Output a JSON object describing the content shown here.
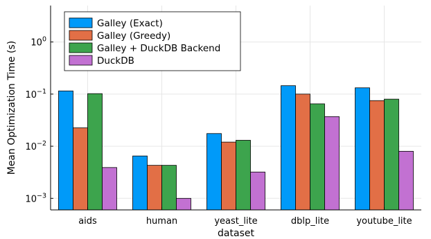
{
  "chart_data": {
    "type": "bar",
    "xlabel": "dataset",
    "ylabel": "Mean Optimization Time (s)",
    "yscale": "log",
    "ylim": [
      0.0006,
      5
    ],
    "grid": true,
    "legend_position": "top-left",
    "categories": [
      "aids",
      "human",
      "yeast_lite",
      "dblp_lite",
      "youtube_lite"
    ],
    "y_ticks": [
      {
        "value": 0.001,
        "base": "10",
        "exp": "−3"
      },
      {
        "value": 0.01,
        "base": "10",
        "exp": "−2"
      },
      {
        "value": 0.1,
        "base": "10",
        "exp": "−1"
      },
      {
        "value": 1,
        "base": "10",
        "exp": "0"
      }
    ],
    "series": [
      {
        "name": "Galley (Exact)",
        "color": "#009af9",
        "values": [
          0.115,
          0.0065,
          0.0175,
          0.145,
          0.132
        ]
      },
      {
        "name": "Galley (Greedy)",
        "color": "#e26f46",
        "values": [
          0.0225,
          0.0043,
          0.012,
          0.1,
          0.075
        ]
      },
      {
        "name": "Galley + DuckDB Backend",
        "color": "#3da44d",
        "values": [
          0.102,
          0.0043,
          0.013,
          0.065,
          0.08
        ]
      },
      {
        "name": "DuckDB",
        "color": "#c271d2",
        "values": [
          0.0039,
          0.001,
          0.0032,
          0.037,
          0.008
        ]
      }
    ]
  }
}
